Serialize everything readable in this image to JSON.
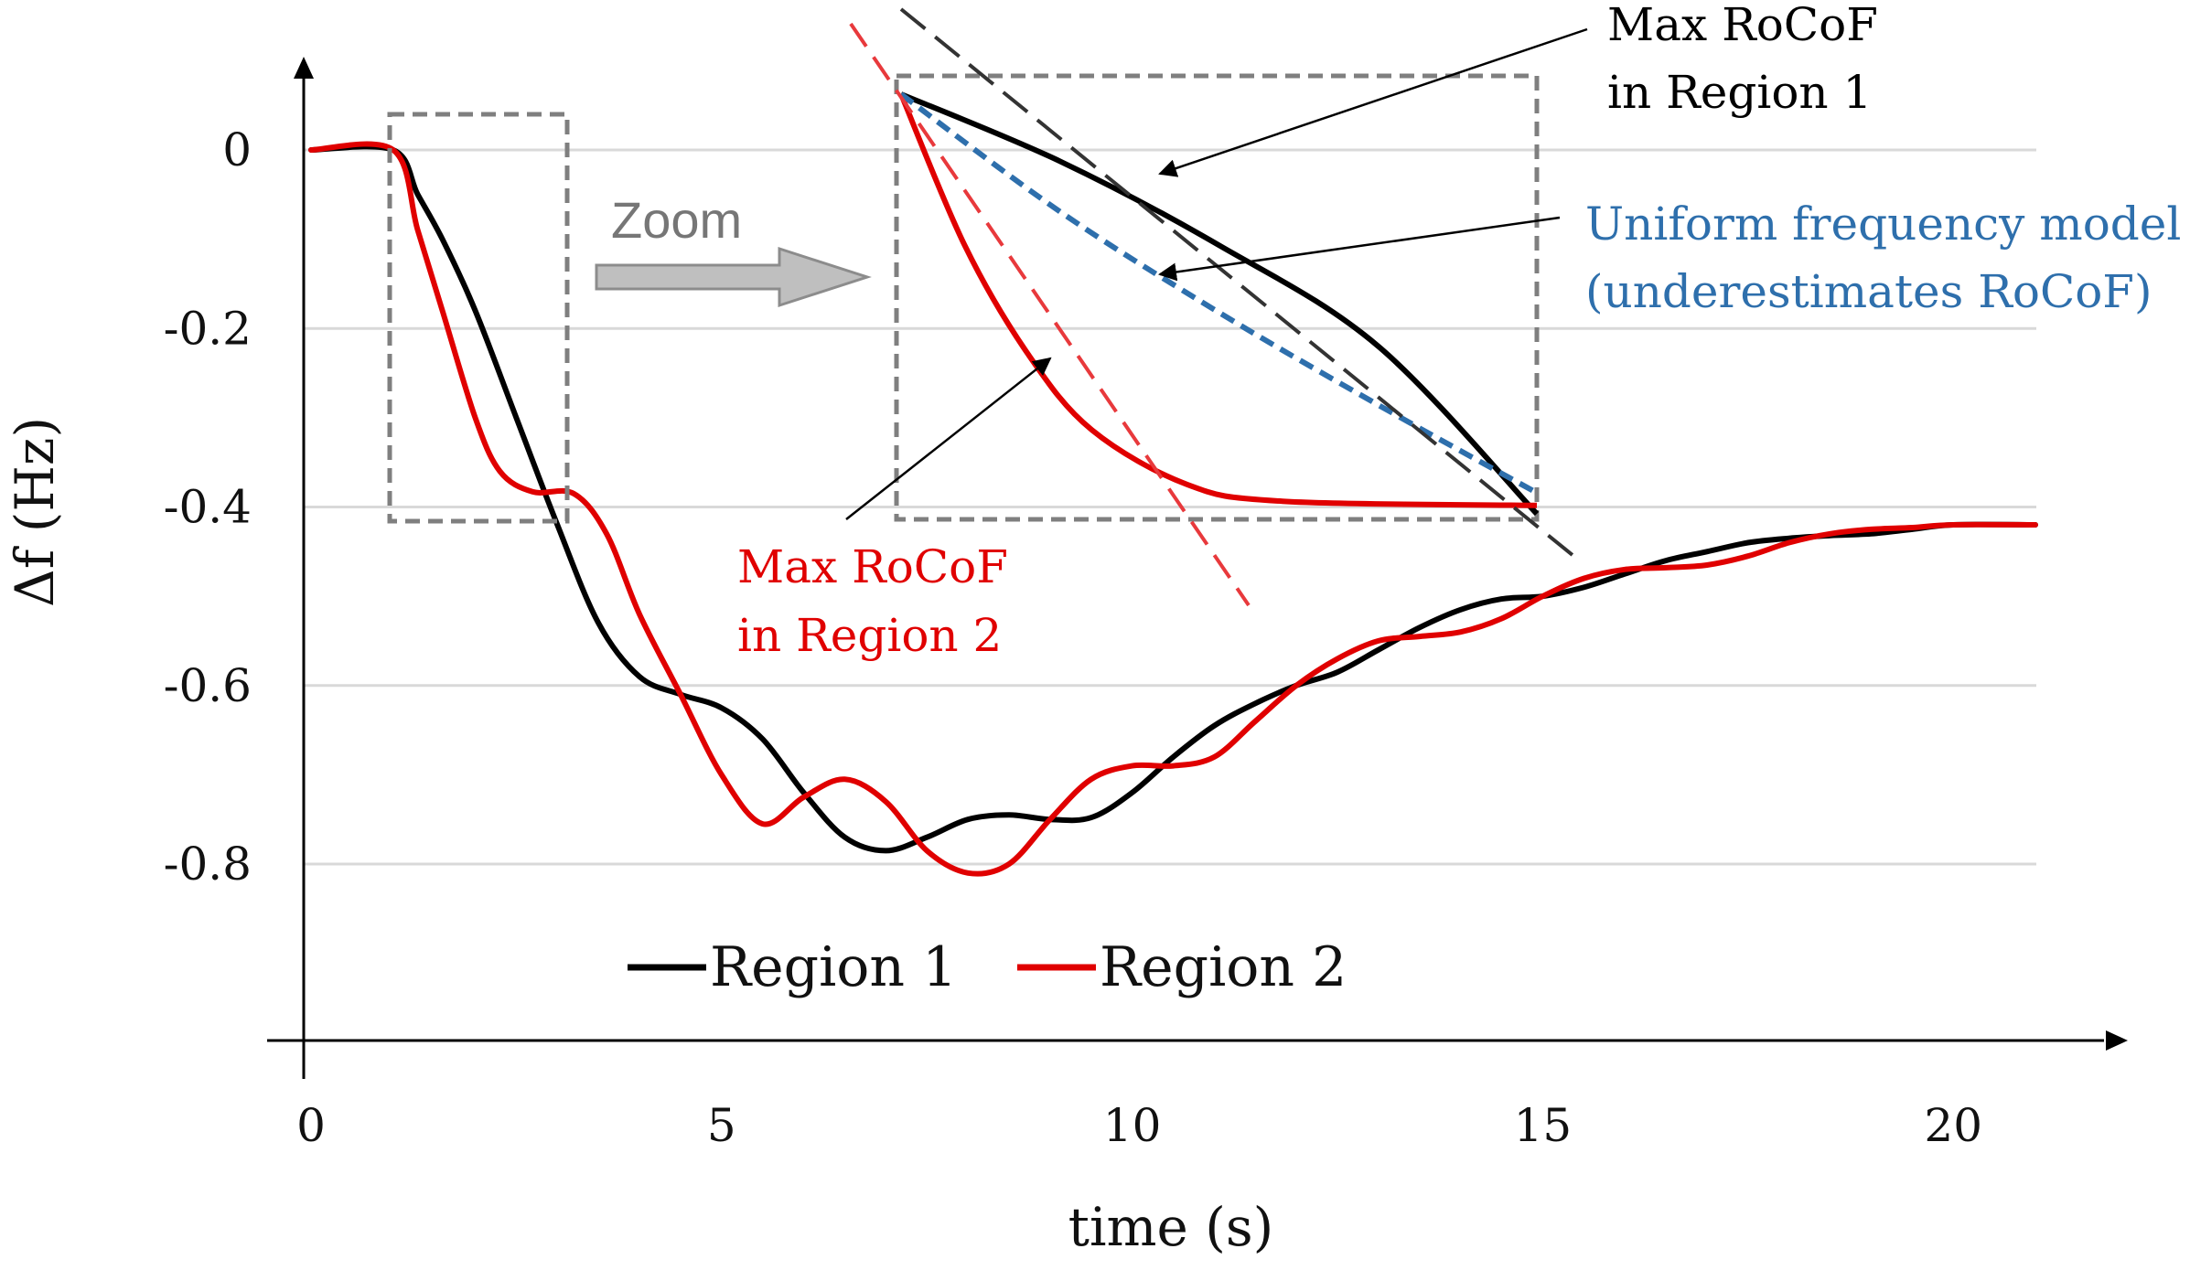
{
  "chart_data": {
    "type": "line",
    "title": "",
    "xlabel": "time (s)",
    "ylabel": "Δf  (Hz)",
    "xlim": [
      0,
      21
    ],
    "ylim": [
      -0.95,
      0.1
    ],
    "grid": true,
    "x_ticks": [
      0,
      5,
      10,
      15,
      20
    ],
    "x_tick_labels": [
      "0",
      "5",
      "10",
      "15",
      "20"
    ],
    "y_ticks": [
      0,
      -0.2,
      -0.4,
      -0.6,
      -0.8
    ],
    "y_tick_labels": [
      "0",
      "-0.2",
      "-0.4",
      "-0.6",
      "-0.8"
    ],
    "legend_position": "bottom-left",
    "series": [
      {
        "name": "Region 1",
        "color": "#000000",
        "points": [
          [
            0,
            0
          ],
          [
            1,
            0
          ],
          [
            1.3,
            -0.05
          ],
          [
            1.6,
            -0.1
          ],
          [
            2,
            -0.18
          ],
          [
            2.5,
            -0.3
          ],
          [
            3,
            -0.42
          ],
          [
            3.5,
            -0.53
          ],
          [
            4,
            -0.59
          ],
          [
            4.5,
            -0.61
          ],
          [
            5,
            -0.625
          ],
          [
            5.5,
            -0.66
          ],
          [
            6,
            -0.72
          ],
          [
            6.5,
            -0.77
          ],
          [
            7,
            -0.785
          ],
          [
            7.5,
            -0.77
          ],
          [
            8,
            -0.75
          ],
          [
            8.5,
            -0.745
          ],
          [
            9,
            -0.75
          ],
          [
            9.5,
            -0.748
          ],
          [
            10,
            -0.72
          ],
          [
            10.5,
            -0.68
          ],
          [
            11,
            -0.645
          ],
          [
            11.5,
            -0.62
          ],
          [
            12,
            -0.6
          ],
          [
            12.5,
            -0.585
          ],
          [
            13,
            -0.56
          ],
          [
            13.5,
            -0.535
          ],
          [
            14,
            -0.515
          ],
          [
            14.5,
            -0.503
          ],
          [
            15,
            -0.5
          ],
          [
            15.5,
            -0.49
          ],
          [
            16,
            -0.475
          ],
          [
            16.5,
            -0.46
          ],
          [
            17,
            -0.45
          ],
          [
            17.5,
            -0.44
          ],
          [
            18,
            -0.435
          ],
          [
            18.5,
            -0.432
          ],
          [
            19,
            -0.43
          ],
          [
            19.5,
            -0.425
          ],
          [
            20,
            -0.42
          ],
          [
            21,
            -0.42
          ]
        ]
      },
      {
        "name": "Region 2",
        "color": "#e00000",
        "points": [
          [
            0,
            0
          ],
          [
            1,
            0
          ],
          [
            1.3,
            -0.09
          ],
          [
            1.6,
            -0.18
          ],
          [
            2,
            -0.3
          ],
          [
            2.3,
            -0.36
          ],
          [
            2.7,
            -0.383
          ],
          [
            3.2,
            -0.385
          ],
          [
            3.6,
            -0.43
          ],
          [
            4,
            -0.52
          ],
          [
            4.5,
            -0.61
          ],
          [
            5,
            -0.7
          ],
          [
            5.5,
            -0.755
          ],
          [
            6,
            -0.725
          ],
          [
            6.5,
            -0.705
          ],
          [
            7,
            -0.73
          ],
          [
            7.5,
            -0.785
          ],
          [
            8,
            -0.81
          ],
          [
            8.5,
            -0.8
          ],
          [
            9,
            -0.75
          ],
          [
            9.5,
            -0.705
          ],
          [
            10,
            -0.69
          ],
          [
            10.5,
            -0.69
          ],
          [
            11,
            -0.68
          ],
          [
            11.5,
            -0.64
          ],
          [
            12,
            -0.6
          ],
          [
            12.5,
            -0.57
          ],
          [
            13,
            -0.55
          ],
          [
            13.5,
            -0.545
          ],
          [
            14,
            -0.54
          ],
          [
            14.5,
            -0.525
          ],
          [
            15,
            -0.5
          ],
          [
            15.5,
            -0.48
          ],
          [
            16,
            -0.47
          ],
          [
            16.5,
            -0.468
          ],
          [
            17,
            -0.465
          ],
          [
            17.5,
            -0.455
          ],
          [
            18,
            -0.44
          ],
          [
            18.5,
            -0.43
          ],
          [
            19,
            -0.425
          ],
          [
            19.5,
            -0.423
          ],
          [
            20,
            -0.42
          ],
          [
            21,
            -0.42
          ]
        ]
      }
    ],
    "inset": {
      "label": "Zoom",
      "region1": [
        [
          0,
          0
        ],
        [
          0.25,
          -0.16
        ],
        [
          0.5,
          -0.36
        ],
        [
          0.75,
          -0.6
        ],
        [
          1,
          -1
        ]
      ],
      "region2": [
        [
          0,
          0
        ],
        [
          0.1,
          -0.36
        ],
        [
          0.2,
          -0.62
        ],
        [
          0.3,
          -0.8
        ],
        [
          0.45,
          -0.93
        ],
        [
          0.6,
          -0.97
        ],
        [
          1,
          -0.98
        ]
      ],
      "uniform": [
        [
          0,
          0
        ],
        [
          0.25,
          -0.28
        ],
        [
          0.5,
          -0.52
        ],
        [
          0.75,
          -0.74
        ],
        [
          1,
          -0.95
        ]
      ]
    },
    "annotations": [
      {
        "lines": [
          "Max RoCoF",
          "in Region 1"
        ],
        "color": "#000000"
      },
      {
        "lines": [
          "Uniform frequency model",
          "(underestimates RoCoF)"
        ],
        "color": "#2e6fac"
      },
      {
        "lines": [
          "Max RoCoF",
          "in Region 2"
        ],
        "color": "#e00000"
      }
    ]
  }
}
